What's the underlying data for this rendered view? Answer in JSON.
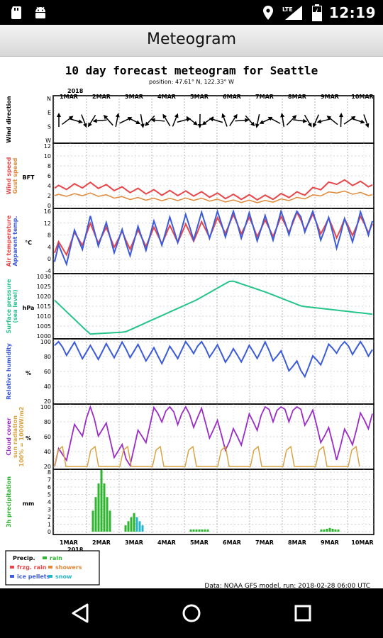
{
  "status_bar": {
    "time": "12:19",
    "network": "LTE",
    "icons": [
      "sd-card-icon",
      "android-icon",
      "location-icon",
      "signal-icon",
      "battery-icon"
    ]
  },
  "app_bar": {
    "title": "Meteogram"
  },
  "meteogram": {
    "title": "10 day forecast meteogram for Seattle",
    "position": "position: 47.61° N, 122.33° W",
    "year": "2018",
    "dates": [
      "1MAR",
      "2MAR",
      "3MAR",
      "4MAR",
      "5MAR",
      "6MAR",
      "7MAR",
      "8MAR",
      "9MAR",
      "10MAR"
    ],
    "footer": "Data: NOAA GFS model, run: 2018-02-28 06:00 UTC",
    "panels": [
      {
        "key": "wind_dir",
        "labels": [
          "Wind direction"
        ],
        "label_colors": [
          "#000000"
        ],
        "unit": "",
        "ticks": [
          "N",
          "E",
          "S",
          "W"
        ]
      },
      {
        "key": "wind_speed",
        "labels": [
          "Wind speed",
          "Gust speed"
        ],
        "label_colors": [
          "#e8474a",
          "#e08a3a"
        ],
        "unit": "BFT",
        "ticks": [
          "12",
          "10",
          "8",
          "6",
          "4",
          "2",
          "0"
        ]
      },
      {
        "key": "temp",
        "labels": [
          "Air temperature",
          "Apparent temp."
        ],
        "label_colors": [
          "#e8474a",
          "#3b5bdb"
        ],
        "unit": "°C",
        "ticks": [
          "16",
          "12",
          "8",
          "4",
          "0",
          "-4"
        ]
      },
      {
        "key": "pressure",
        "labels": [
          "Surface pressure",
          "(sea level)"
        ],
        "label_colors": [
          "#25c48a",
          "#25c48a"
        ],
        "unit": "hPa",
        "ticks": [
          "1030",
          "1025",
          "1020",
          "1015",
          "1010",
          "1005",
          "1000"
        ]
      },
      {
        "key": "rh",
        "labels": [
          "Relative humidity"
        ],
        "label_colors": [
          "#3b5bdb"
        ],
        "unit": "%",
        "ticks": [
          "100",
          "80",
          "60",
          "40",
          "20"
        ]
      },
      {
        "key": "cloud",
        "labels": [
          "Cloud cover",
          "sun radiation",
          "100% = 1000W/m2"
        ],
        "label_colors": [
          "#9a2dc7",
          "#d9a441",
          "#d9a441"
        ],
        "unit": "%",
        "ticks": [
          "100",
          "80",
          "60",
          "40",
          "20"
        ]
      },
      {
        "key": "precip",
        "labels": [
          "3h precipitation"
        ],
        "label_colors": [
          "#2fb52f"
        ],
        "unit": "mm",
        "ticks": [
          "8",
          "7",
          "6",
          "5",
          "4",
          "3",
          "2",
          "1",
          "0"
        ]
      }
    ],
    "legend": {
      "title": "Precip.",
      "items": [
        {
          "label": "rain",
          "color": "#2fb52f"
        },
        {
          "label": "frzg. rain",
          "color": "#e8474a"
        },
        {
          "label": "showers",
          "color": "#e08a3a"
        },
        {
          "label": "ice pellets",
          "color": "#3b5bdb"
        },
        {
          "label": "snow",
          "color": "#25b7c9"
        }
      ]
    }
  },
  "chart_data": {
    "type": "line",
    "title": "10 day forecast meteogram for Seattle",
    "x": [
      "1MAR",
      "2MAR",
      "3MAR",
      "4MAR",
      "5MAR",
      "6MAR",
      "7MAR",
      "8MAR",
      "9MAR",
      "10MAR"
    ],
    "series": [
      {
        "name": "Wind speed",
        "unit": "BFT",
        "values": [
          3.5,
          4.2,
          3.2,
          2.6,
          2.4,
          1.8,
          1.6,
          2.4,
          4.8,
          4.2
        ]
      },
      {
        "name": "Gust speed",
        "unit": "BFT",
        "values": [
          2.0,
          2.3,
          1.5,
          1.2,
          1.3,
          0.9,
          0.8,
          1.5,
          2.8,
          2.2
        ]
      },
      {
        "name": "Air temperature",
        "unit": "°C",
        "values": [
          2,
          9,
          6,
          8,
          9,
          12,
          10,
          13,
          10,
          12
        ]
      },
      {
        "name": "Apparent temp.",
        "unit": "°C",
        "values": [
          -1,
          10,
          5,
          9,
          11,
          12,
          10,
          14,
          8,
          13
        ]
      },
      {
        "name": "Surface pressure",
        "unit": "hPa",
        "values": [
          1018,
          1001,
          1002,
          1010,
          1018,
          1028,
          1022,
          1015,
          1013,
          1011
        ]
      },
      {
        "name": "Relative humidity",
        "unit": "%",
        "values": [
          95,
          85,
          90,
          80,
          95,
          80,
          90,
          60,
          95,
          90
        ]
      },
      {
        "name": "Cloud cover",
        "unit": "%",
        "values": [
          0,
          90,
          10,
          95,
          85,
          40,
          95,
          95,
          30,
          90
        ]
      },
      {
        "name": "3h precipitation",
        "unit": "mm",
        "values": [
          0,
          8.3,
          2.5,
          0,
          0.3,
          0,
          0,
          0,
          0.5,
          0
        ]
      }
    ],
    "ylim_pressure": [
      1000,
      1030
    ]
  },
  "nav_bar": {
    "buttons": [
      "back",
      "home",
      "recents"
    ]
  }
}
